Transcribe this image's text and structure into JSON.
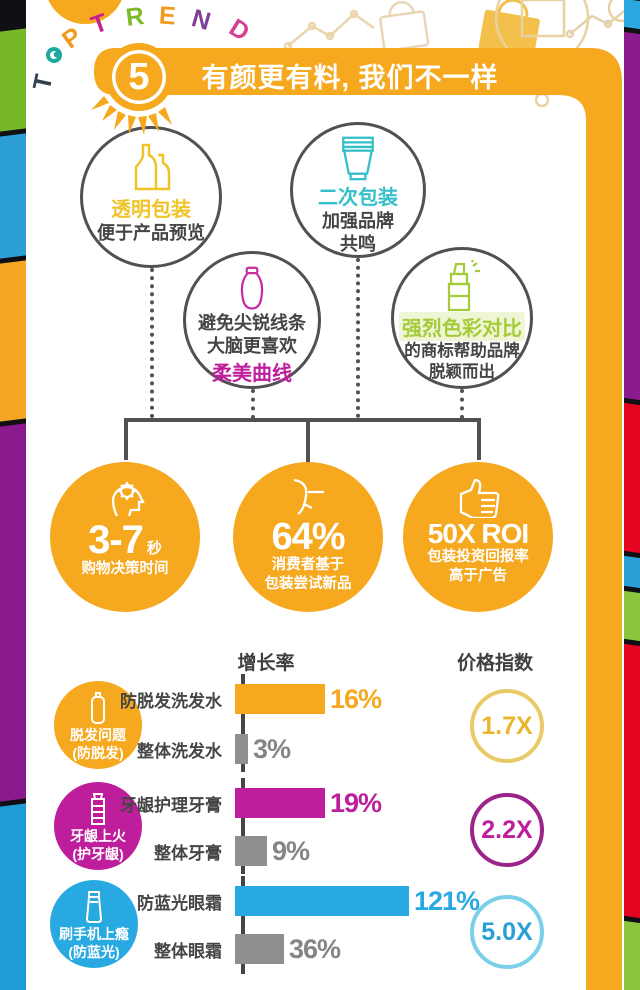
{
  "badge": {
    "letters": [
      "T",
      "O",
      "P",
      "T",
      "R",
      "E",
      "N",
      "D"
    ],
    "number": "5"
  },
  "header": {
    "title": "有颜更有料, 我们不一样"
  },
  "features": [
    {
      "title": "透明包装",
      "desc1": "便于产品预览",
      "desc2": ""
    },
    {
      "title": "二次包装",
      "desc1": "加强品牌",
      "desc2": "共鸣"
    },
    {
      "pre1": "避免尖锐线条",
      "pre2": "大脑更喜欢",
      "title": "柔美曲线"
    },
    {
      "title": "强烈色彩对比",
      "desc1": "的商标帮助品牌",
      "desc2": "脱颖而出"
    }
  ],
  "stats": [
    {
      "value": "3-7",
      "unit": "秒",
      "desc1": "购物决策时间",
      "desc2": ""
    },
    {
      "value": "64%",
      "unit": "",
      "desc1": "消费者基于",
      "desc2": "包装尝试新品"
    },
    {
      "value": "50X ROI",
      "unit": "",
      "desc1": "包装投资回报率",
      "desc2": "高于广告"
    }
  ],
  "chart": {
    "growth_header": "增长率",
    "price_header": "价格指数",
    "groups": [
      {
        "cat1": "脱发问题",
        "cat2": "(防脱发)",
        "bar1_label": "防脱发洗发水",
        "bar1_value": "16%",
        "bar1_w": 90,
        "bar2_label": "整体洗发水",
        "bar2_value": "3%",
        "bar2_w": 13,
        "price": "1.7X"
      },
      {
        "cat1": "牙龈上火",
        "cat2": "(护牙龈)",
        "bar1_label": "牙龈护理牙膏",
        "bar1_value": "19%",
        "bar1_w": 90,
        "bar2_label": "整体牙膏",
        "bar2_value": "9%",
        "bar2_w": 32,
        "price": "2.2X"
      },
      {
        "cat1": "刷手机上瘾",
        "cat2": "(防蓝光)",
        "bar1_label": "防蓝光眼霜",
        "bar1_value": "121%",
        "bar1_w": 174,
        "bar2_label": "整体眼霜",
        "bar2_value": "36%",
        "bar2_w": 49,
        "price": "5.0X"
      }
    ]
  },
  "colors": {
    "orange": "#F6A81F",
    "yellow_text": "#EFC428",
    "cyan": "#35BFC9",
    "magenta": "#BE1E9C",
    "green": "#A6CB39",
    "blue": "#29A9E1",
    "gray_bar": "#8F8F8F",
    "dark_text": "#454547"
  },
  "chart_data": {
    "type": "bar",
    "title": "有颜更有料, 我们不一样",
    "columns": [
      "增长率",
      "价格指数"
    ],
    "groups": [
      {
        "category": "脱发问题(防脱发)",
        "bars": [
          {
            "label": "防脱发洗发水",
            "growth_pct": 16
          },
          {
            "label": "整体洗发水",
            "growth_pct": 3
          }
        ],
        "price_index": "1.7X"
      },
      {
        "category": "牙龈上火(护牙龈)",
        "bars": [
          {
            "label": "牙龈护理牙膏",
            "growth_pct": 19
          },
          {
            "label": "整体牙膏",
            "growth_pct": 9
          }
        ],
        "price_index": "2.2X"
      },
      {
        "category": "刷手机上瘾(防蓝光)",
        "bars": [
          {
            "label": "防蓝光眼霜",
            "growth_pct": 121
          },
          {
            "label": "整体眼霜",
            "growth_pct": 36
          }
        ],
        "price_index": "5.0X"
      }
    ],
    "stat_callouts": [
      {
        "value": "3-7 秒",
        "label": "购物决策时间"
      },
      {
        "value": "64%",
        "label": "消费者基于包装尝试新品"
      },
      {
        "value": "50X ROI",
        "label": "包装投资回报率高于广告"
      }
    ]
  }
}
